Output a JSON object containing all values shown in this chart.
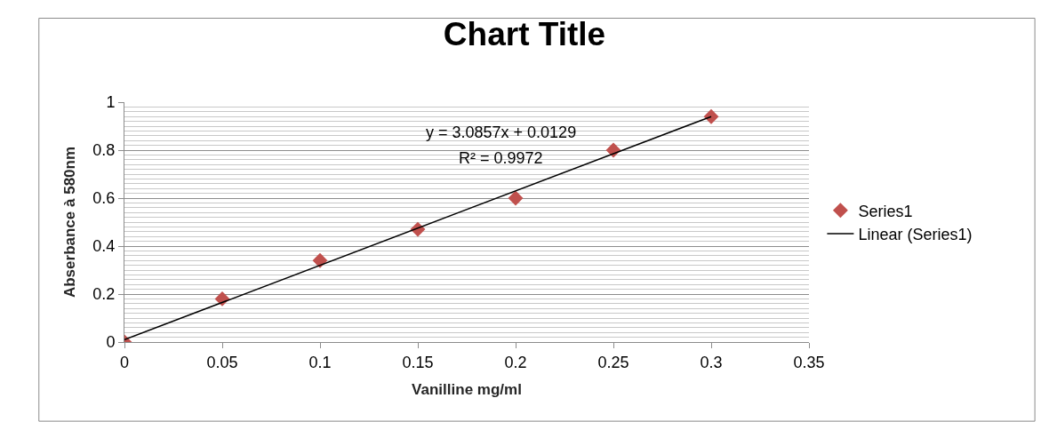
{
  "chart_data": {
    "type": "scatter",
    "title": "Chart Title",
    "xlabel": "Vanilline mg/ml",
    "ylabel": "Abserbance à 580nm",
    "series": [
      {
        "name": "Series1",
        "color": "#c0504d",
        "marker": "diamond",
        "x": [
          0,
          0.05,
          0.1,
          0.15,
          0.2,
          0.25,
          0.3
        ],
        "values": [
          0.0,
          0.18,
          0.34,
          0.47,
          0.6,
          0.8,
          0.94
        ]
      },
      {
        "name": "Linear (Series1)",
        "type": "line",
        "color": "#000000",
        "line_style": "solid",
        "marker": "none",
        "x": [
          0,
          0.3
        ],
        "values": [
          0.01,
          0.94
        ]
      }
    ],
    "annotations": [
      "y = 3.0857x + 0.0129",
      "R² = 0.9972"
    ],
    "xlim": [
      0,
      0.35
    ],
    "xticks": [
      0,
      0.05,
      0.1,
      0.15,
      0.2,
      0.25,
      0.3,
      0.35
    ],
    "ylim": [
      0,
      1
    ],
    "yticks": [
      0,
      {
        "value": 0.02,
        "label": null
      },
      {
        "value": 0.04,
        "label": null
      },
      {
        "value": 0.06,
        "label": null
      },
      {
        "value": 0.08,
        "label": null
      },
      {
        "value": 0.1,
        "label": null
      },
      {
        "value": 0.12,
        "label": null
      },
      {
        "value": 0.14,
        "label": null
      },
      {
        "value": 0.16,
        "label": null
      },
      {
        "value": 0.18,
        "label": null
      },
      0.2,
      {
        "value": 0.22,
        "label": null
      },
      {
        "value": 0.24,
        "label": null
      },
      {
        "value": 0.26,
        "label": null
      },
      {
        "value": 0.28,
        "label": null
      },
      {
        "value": 0.3,
        "label": null
      },
      {
        "value": 0.32,
        "label": null
      },
      {
        "value": 0.34,
        "label": null
      },
      {
        "value": 0.36,
        "label": null
      },
      {
        "value": 0.38,
        "label": null
      },
      0.4,
      {
        "value": 0.42,
        "label": null
      },
      {
        "value": 0.44,
        "label": null
      },
      {
        "value": 0.46,
        "label": null
      },
      {
        "value": 0.48,
        "label": null
      },
      {
        "value": 0.5,
        "label": null
      },
      {
        "value": 0.52,
        "label": null
      },
      {
        "value": 0.54,
        "label": null
      },
      {
        "value": 0.56,
        "label": null
      },
      {
        "value": 0.58,
        "label": null
      },
      0.6,
      {
        "value": 0.62,
        "label": null
      },
      {
        "value": 0.64,
        "label": null
      },
      {
        "value": 0.66,
        "label": null
      },
      {
        "value": 0.68,
        "label": null
      },
      {
        "value": 0.7,
        "label": null
      },
      {
        "value": 0.72,
        "label": null
      },
      {
        "value": 0.74,
        "label": null
      },
      {
        "value": 0.76,
        "label": null
      },
      {
        "value": 0.78,
        "label": null
      },
      0.8,
      {
        "value": 0.82,
        "label": null
      },
      {
        "value": 0.84,
        "label": null
      },
      {
        "value": 0.86,
        "label": null
      },
      {
        "value": 0.88,
        "label": null
      },
      {
        "value": 0.9,
        "label": null
      },
      {
        "value": 0.92,
        "label": null
      },
      {
        "value": 0.94,
        "label": null
      },
      {
        "value": 0.96,
        "label": null
      },
      {
        "value": 0.98,
        "label": null
      },
      1
    ],
    "grid": "y",
    "legend": "right"
  }
}
